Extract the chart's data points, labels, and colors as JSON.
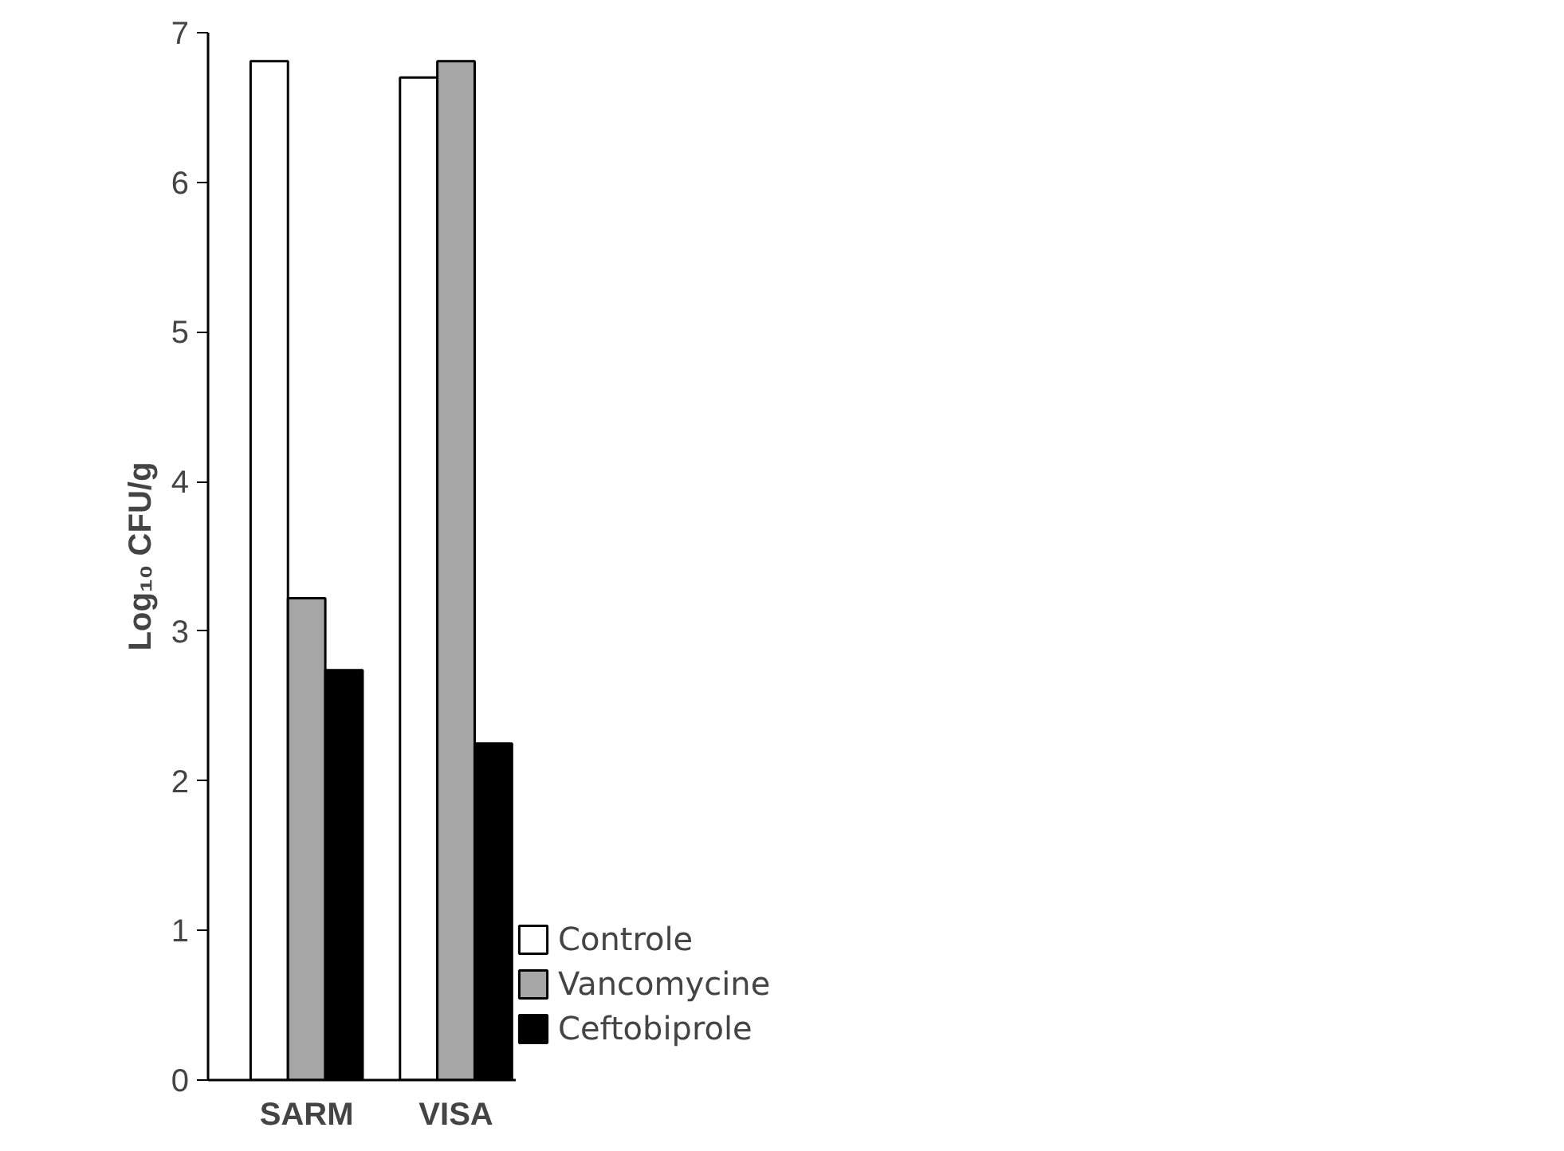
{
  "chart_data": {
    "type": "bar",
    "ylabel": "Log₁₀ CFU/g",
    "categories": [
      "SARM",
      "VISA"
    ],
    "series": [
      {
        "name": "Controle",
        "color": "#ffffff",
        "values": [
          6.81,
          6.7
        ]
      },
      {
        "name": "Vancomycine",
        "color": "#a6a6a6",
        "values": [
          3.22,
          6.81
        ]
      },
      {
        "name": "Ceftobiprole",
        "color": "#000000",
        "values": [
          2.74,
          2.25
        ]
      }
    ],
    "ylim": [
      0,
      7
    ],
    "yticks": [
      0,
      1,
      2,
      3,
      4,
      5,
      6,
      7
    ],
    "grid": false,
    "legend": "bottom right"
  }
}
